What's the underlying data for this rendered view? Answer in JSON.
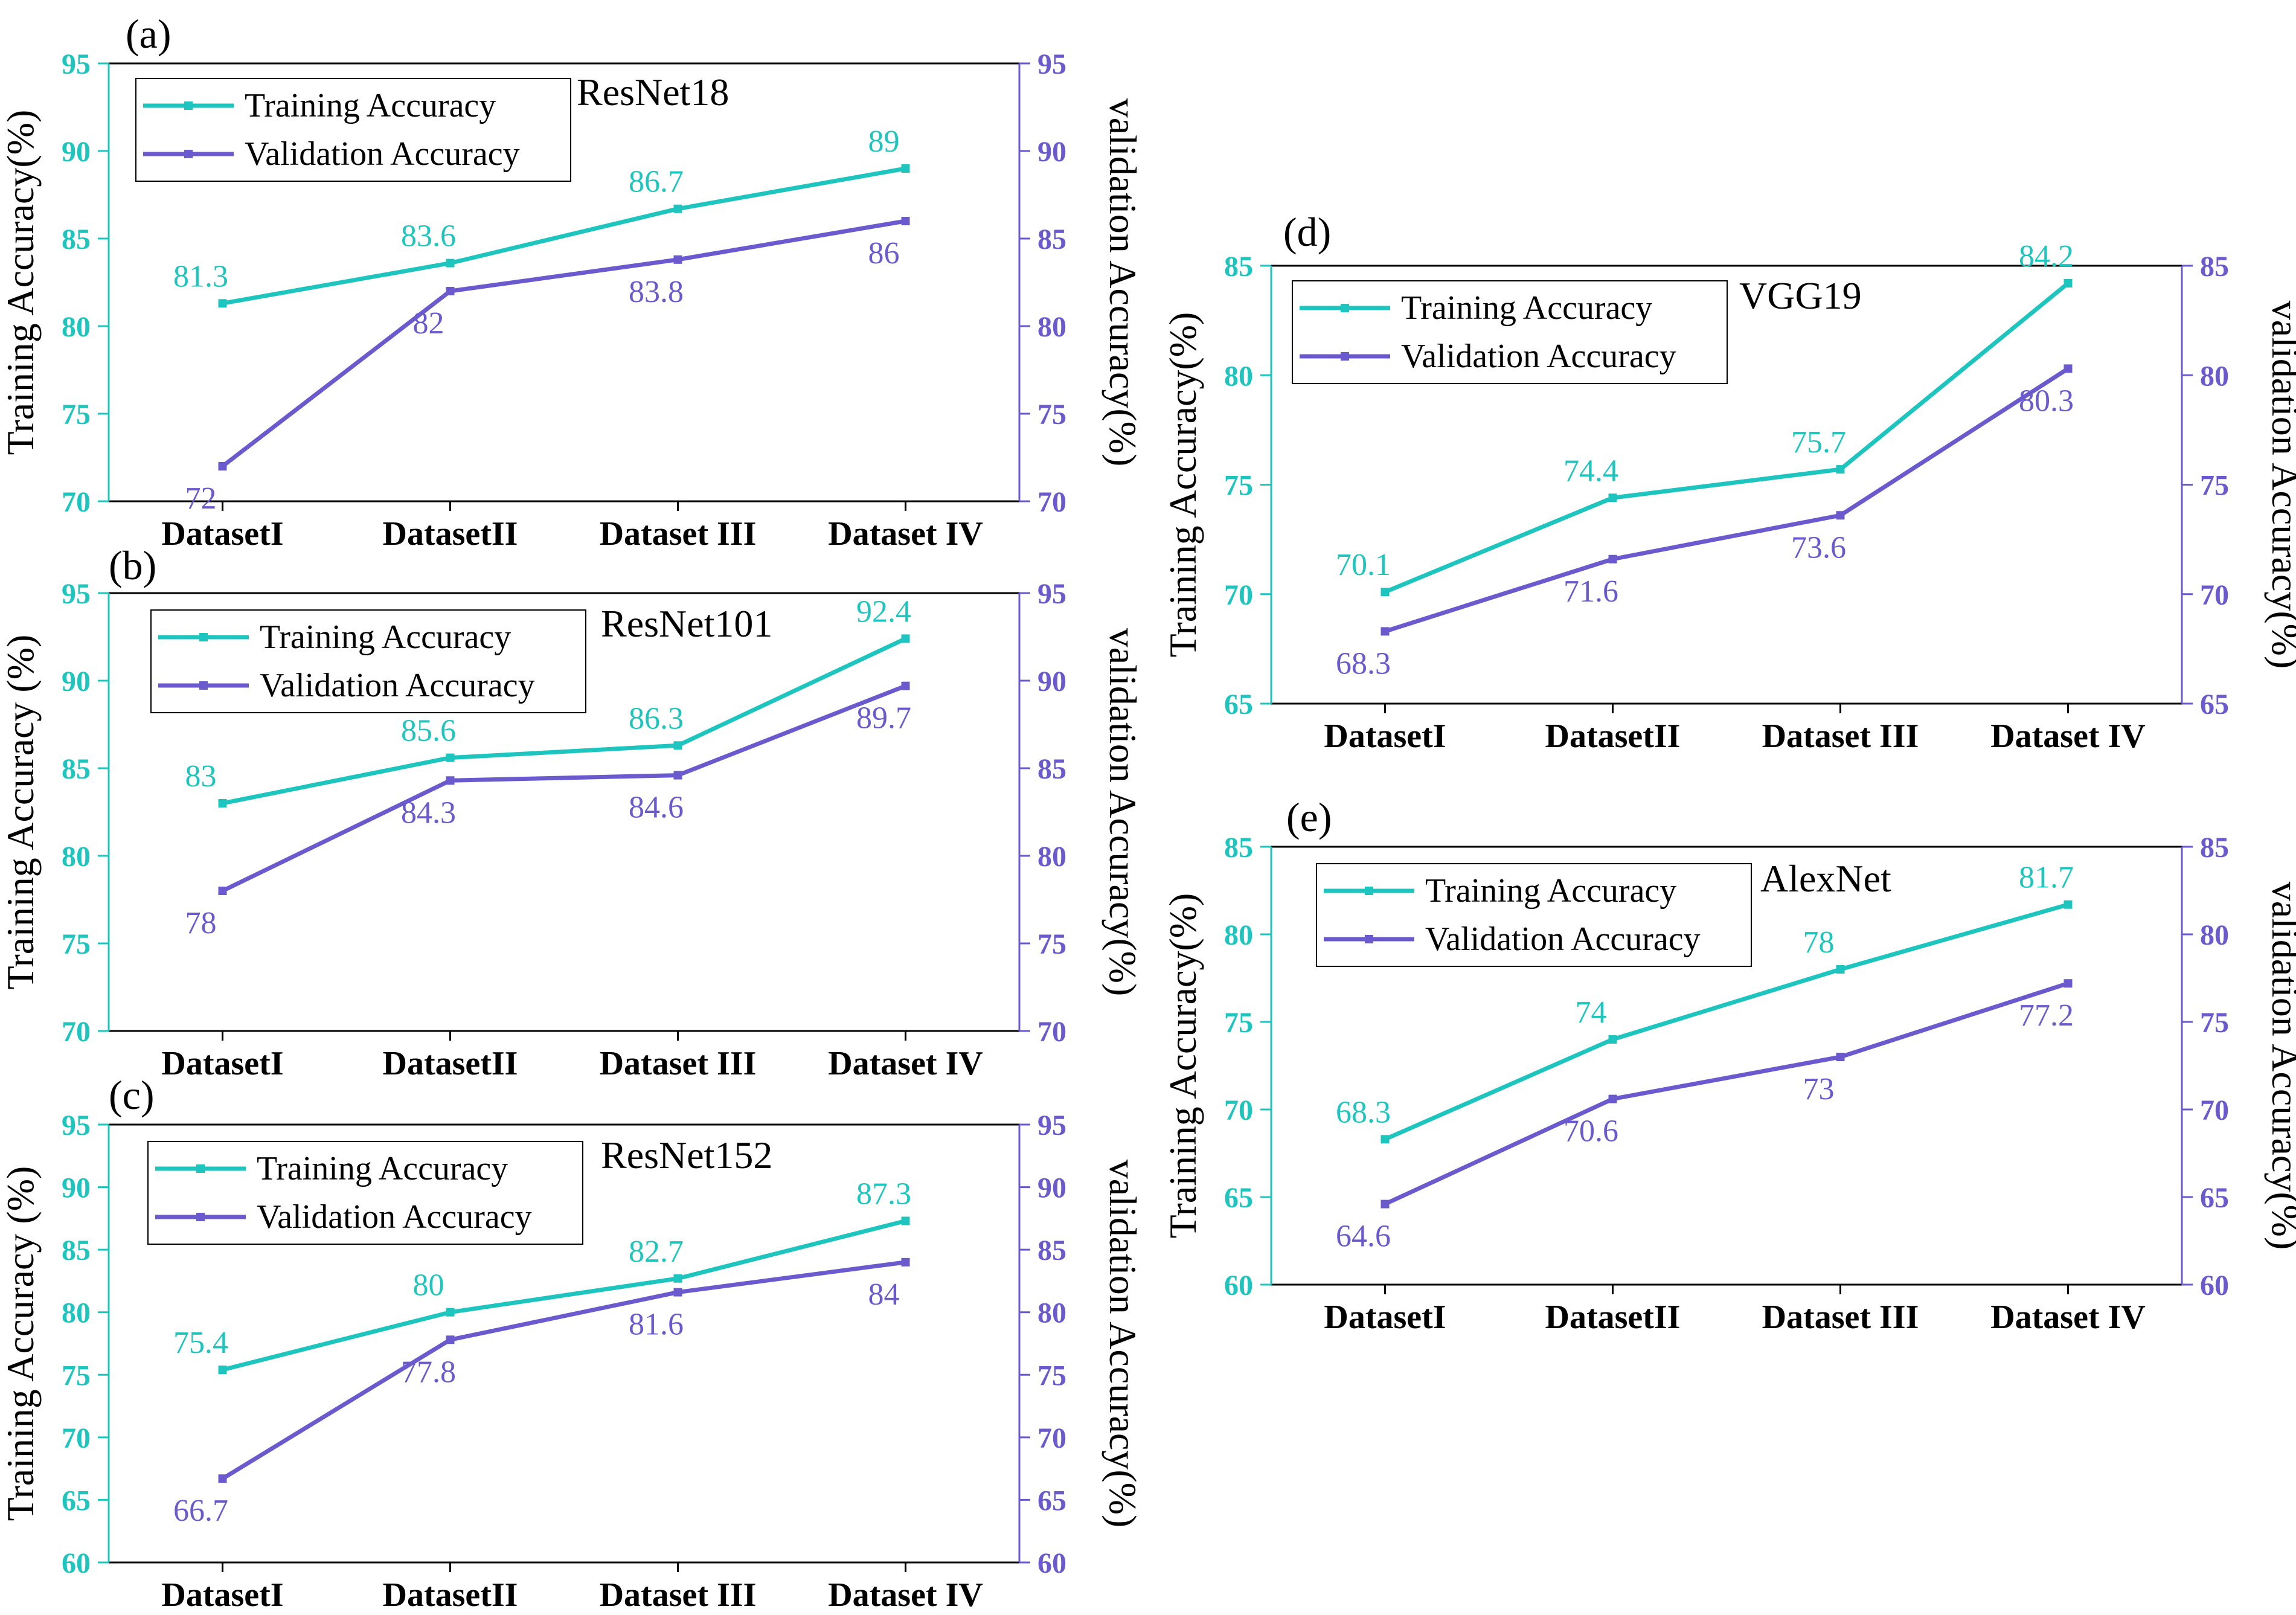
{
  "colors": {
    "training": "#1ec5bf",
    "validation": "#6a5acd",
    "axis": "#000000"
  },
  "chart_data": [
    {
      "id": "a",
      "type": "line",
      "panel_label": "(a)",
      "title": "ResNet18",
      "categories": [
        "DatasetI",
        "DatasetII",
        "Dataset III",
        "Dataset IV"
      ],
      "ylabel": "Training Accuracy(%)",
      "ylabel_right": "validation Accuracy(%)",
      "ylim": [
        70,
        95
      ],
      "yticks": [
        "70",
        "75",
        "80",
        "85",
        "90",
        "95"
      ],
      "legend_position": "top-left",
      "series": [
        {
          "name": "Training Accuracy",
          "values": [
            81.3,
            83.6,
            86.7,
            89
          ],
          "labels": [
            "81.3",
            "83.6",
            "86.7",
            "89"
          ]
        },
        {
          "name": "Validation Accuracy",
          "values": [
            72,
            82,
            83.8,
            86
          ],
          "labels": [
            "72",
            "82",
            "83.8",
            "86"
          ]
        }
      ]
    },
    {
      "id": "b",
      "type": "line",
      "panel_label": "(b)",
      "title": "ResNet101",
      "categories": [
        "DatasetI",
        "DatasetII",
        "Dataset III",
        "Dataset IV"
      ],
      "ylabel": "Training Accuracy (%)",
      "ylabel_right": "validation Accuracy(%)",
      "ylim": [
        70,
        95
      ],
      "yticks": [
        "70",
        "75",
        "80",
        "85",
        "90",
        "95"
      ],
      "legend_position": "top-left",
      "series": [
        {
          "name": "Training Accuracy",
          "values": [
            83,
            85.6,
            86.3,
            92.4
          ],
          "labels": [
            "83",
            "85.6",
            "86.3",
            "92.4"
          ]
        },
        {
          "name": "Validation Accuracy",
          "values": [
            78,
            84.3,
            84.6,
            89.7
          ],
          "labels": [
            "78",
            "84.3",
            "84.6",
            "89.7"
          ]
        }
      ]
    },
    {
      "id": "c",
      "type": "line",
      "panel_label": "(c)",
      "title": "ResNet152",
      "categories": [
        "DatasetI",
        "DatasetII",
        "Dataset III",
        "Dataset IV"
      ],
      "ylabel": "Training Accuracy (%)",
      "ylabel_right": "validation Accuracy(%)",
      "ylim": [
        60,
        95
      ],
      "yticks": [
        "60",
        "65",
        "70",
        "75",
        "80",
        "85",
        "90",
        "95"
      ],
      "legend_position": "top-left",
      "series": [
        {
          "name": "Training Accuracy",
          "values": [
            75.4,
            80,
            82.7,
            87.3
          ],
          "labels": [
            "75.4",
            "80",
            "82.7",
            "87.3"
          ]
        },
        {
          "name": "Validation Accuracy",
          "values": [
            66.7,
            77.8,
            81.6,
            84
          ],
          "labels": [
            "66.7",
            "77.8",
            "81.6",
            "84"
          ]
        }
      ]
    },
    {
      "id": "d",
      "type": "line",
      "panel_label": "(d)",
      "title": "VGG19",
      "categories": [
        "DatasetI",
        "DatasetII",
        "Dataset III",
        "Dataset IV"
      ],
      "ylabel": "Training Accuracy(%)",
      "ylabel_right": "validation Accuracy(%)",
      "ylim": [
        65,
        85
      ],
      "yticks": [
        "65",
        "70",
        "75",
        "80",
        "85"
      ],
      "legend_position": "top-left",
      "series": [
        {
          "name": "Training Accuracy",
          "values": [
            70.1,
            74.4,
            75.7,
            84.2
          ],
          "labels": [
            "70.1",
            "74.4",
            "75.7",
            "84.2"
          ]
        },
        {
          "name": "Validation Accuracy",
          "values": [
            68.3,
            71.6,
            73.6,
            80.3
          ],
          "labels": [
            "68.3",
            "71.6",
            "73.6",
            "80.3"
          ]
        }
      ]
    },
    {
      "id": "e",
      "type": "line",
      "panel_label": "(e)",
      "title": "AlexNet",
      "categories": [
        "DatasetI",
        "DatasetII",
        "Dataset III",
        "Dataset IV"
      ],
      "ylabel": "Training Accuracy(%)",
      "ylabel_right": "validation Accuracy(%)",
      "ylim": [
        60,
        85
      ],
      "yticks": [
        "60",
        "65",
        "70",
        "75",
        "80",
        "85"
      ],
      "legend_position": "top-left",
      "series": [
        {
          "name": "Training Accuracy",
          "values": [
            68.3,
            74,
            78,
            81.7
          ],
          "labels": [
            "68.3",
            "74",
            "78",
            "81.7"
          ]
        },
        {
          "name": "Validation Accuracy",
          "values": [
            64.6,
            70.6,
            73,
            77.2
          ],
          "labels": [
            "64.6",
            "70.6",
            "73",
            "77.2"
          ]
        }
      ]
    }
  ]
}
